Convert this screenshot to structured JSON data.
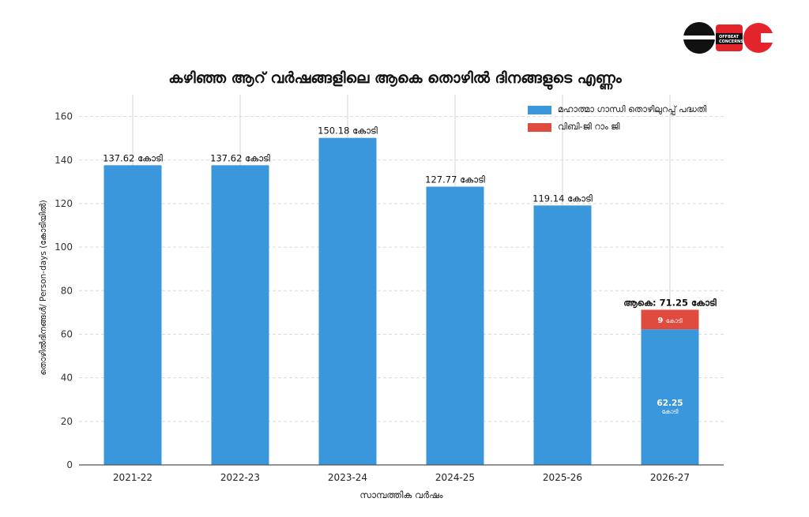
{
  "logo": {
    "label": "OFFBEAT CONCERNS"
  },
  "chart_data": {
    "type": "bar",
    "title": "കഴിഞ്ഞ ആറ് വർഷങ്ങളിലെ ആകെ തൊഴിൽ ദിനങ്ങളുടെ എണ്ണം",
    "xlabel": "സാമ്പത്തിക വർഷം",
    "ylabel": "തൊഴിൽദിനങ്ങൾ/ Person-days (കോടിയിൽ)",
    "categories": [
      "2021-22",
      "2022-23",
      "2023-24",
      "2024-25",
      "2025-26",
      "2026-27"
    ],
    "series": [
      {
        "name": "മഹാത്മാ ഗാന്ധി തൊഴിലുറപ്പ് പദ്ധതി",
        "color": "#3a97dc",
        "values": [
          137.62,
          137.62,
          150.18,
          127.77,
          119.14,
          62.25
        ]
      },
      {
        "name": "വിബി-ജി റാം ജി",
        "color": "#e04b3f",
        "values": [
          0,
          0,
          0,
          0,
          0,
          9
        ]
      }
    ],
    "data_labels": [
      "137.62 കോടി",
      "137.62 കോടി",
      "150.18 കോടി",
      "127.77 കോടി",
      "119.14 കോടി",
      "ആകെ: 71.25 കോടി"
    ],
    "segment_labels": {
      "blue_value": "62.25",
      "blue_unit": "കോടി",
      "red_value": "9",
      "red_unit": "കോടി"
    },
    "yticks": [
      "0",
      "20",
      "40",
      "60",
      "80",
      "100",
      "120",
      "140",
      "160"
    ],
    "ylim": [
      0,
      170
    ],
    "grid": true,
    "legend_position": "top-right"
  }
}
